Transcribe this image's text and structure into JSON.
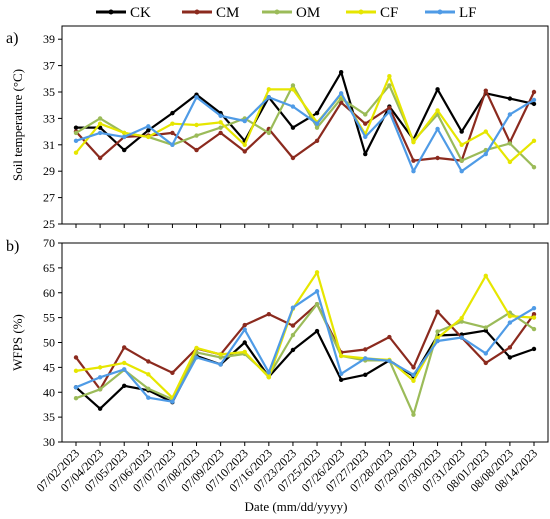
{
  "chart_data": [
    {
      "type": "line",
      "panel_label": "a)",
      "ylabel": "Soil temperature (°C)",
      "ylim": [
        25,
        40
      ],
      "yticks": [
        "25",
        "27",
        "29",
        "31",
        "33",
        "35",
        "37",
        "39"
      ],
      "categories": [
        "07/02/2023",
        "07/04/2023",
        "07/05/2023",
        "07/06/2023",
        "07/07/2023",
        "07/08/2023",
        "07/09/2023",
        "07/10/2023",
        "07/16/2023",
        "07/23/2023",
        "07/25/2023",
        "07/26/2023",
        "07/27/2023",
        "07/28/2023",
        "07/29/2023",
        "07/30/2023",
        "07/31/2023",
        "08/01/2023",
        "08/08/2023",
        "08/14/2023"
      ],
      "series": [
        {
          "name": "CK",
          "color": "#000000",
          "values": [
            32.3,
            32.3,
            30.6,
            32.1,
            33.4,
            34.8,
            33.4,
            31.3,
            34.6,
            32.3,
            33.4,
            36.5,
            30.3,
            33.9,
            31.4,
            35.2,
            32.0,
            34.9,
            34.5,
            34.1
          ]
        },
        {
          "name": "CM",
          "color": "#8b2a1e",
          "values": [
            32.0,
            30.0,
            31.6,
            31.7,
            31.9,
            30.6,
            31.9,
            30.5,
            32.2,
            30.0,
            31.3,
            34.2,
            32.6,
            33.8,
            29.8,
            30.0,
            29.8,
            35.1,
            31.2,
            35.0
          ]
        },
        {
          "name": "OM",
          "color": "#9bbb59",
          "values": [
            31.9,
            33.0,
            31.9,
            31.6,
            31.0,
            31.7,
            32.3,
            33.0,
            31.9,
            35.5,
            32.3,
            34.5,
            33.3,
            35.5,
            31.3,
            33.3,
            29.8,
            30.6,
            31.1,
            29.3
          ]
        },
        {
          "name": "CF",
          "color": "#e6e600",
          "values": [
            30.4,
            32.6,
            31.9,
            31.6,
            32.6,
            32.5,
            32.7,
            31.0,
            35.2,
            35.2,
            32.7,
            34.8,
            31.8,
            36.2,
            31.2,
            33.6,
            31.0,
            32.0,
            29.7,
            31.3
          ]
        },
        {
          "name": "LF",
          "color": "#4f9be6",
          "values": [
            31.3,
            31.9,
            31.6,
            32.4,
            31.0,
            34.6,
            33.2,
            32.8,
            34.6,
            33.9,
            32.6,
            34.9,
            31.6,
            33.5,
            29.0,
            32.2,
            29.0,
            30.3,
            33.3,
            34.4
          ]
        }
      ]
    },
    {
      "type": "line",
      "panel_label": "b)",
      "xlabel": "Date (mm/dd/yyyy)",
      "ylabel": "WFPS (%)",
      "ylim": [
        30,
        70
      ],
      "yticks": [
        "30",
        "35",
        "40",
        "45",
        "50",
        "55",
        "60",
        "65",
        "70"
      ],
      "categories": [
        "07/02/2023",
        "07/04/2023",
        "07/05/2023",
        "07/06/2023",
        "07/07/2023",
        "07/08/2023",
        "07/09/2023",
        "07/10/2023",
        "07/16/2023",
        "07/23/2023",
        "07/25/2023",
        "07/26/2023",
        "07/27/2023",
        "07/28/2023",
        "07/29/2023",
        "07/30/2023",
        "07/31/2023",
        "08/01/2023",
        "08/08/2023",
        "08/14/2023"
      ],
      "series": [
        {
          "name": "CK",
          "color": "#000000",
          "values": [
            41.0,
            36.7,
            41.3,
            40.4,
            38.0,
            47.3,
            45.6,
            50.0,
            43.1,
            48.5,
            52.3,
            42.5,
            43.5,
            46.4,
            43.2,
            51.4,
            51.6,
            52.4,
            47.0,
            48.7
          ]
        },
        {
          "name": "CM",
          "color": "#8b2a1e",
          "values": [
            47.0,
            40.6,
            49.0,
            46.2,
            43.9,
            48.8,
            47.6,
            53.5,
            55.7,
            53.4,
            57.7,
            48.0,
            48.6,
            51.1,
            45.0,
            56.2,
            51.0,
            45.9,
            49.0,
            55.7
          ]
        },
        {
          "name": "OM",
          "color": "#9bbb59",
          "values": [
            38.8,
            40.6,
            44.5,
            40.7,
            38.6,
            48.0,
            47.0,
            47.7,
            43.3,
            51.5,
            57.7,
            47.3,
            46.4,
            46.4,
            35.5,
            52.2,
            54.2,
            53.0,
            56.0,
            52.7
          ]
        },
        {
          "name": "CF",
          "color": "#e6e600",
          "values": [
            44.3,
            45.0,
            45.9,
            43.6,
            38.9,
            48.9,
            47.6,
            48.1,
            43.0,
            56.8,
            64.1,
            47.3,
            46.8,
            46.5,
            42.3,
            50.9,
            54.9,
            63.4,
            55.3,
            55.0
          ]
        },
        {
          "name": "LF",
          "color": "#4f9be6",
          "values": [
            41.0,
            43.0,
            44.6,
            38.9,
            38.1,
            47.0,
            45.6,
            52.6,
            44.0,
            57.0,
            60.3,
            43.7,
            46.8,
            46.3,
            43.5,
            50.3,
            51.0,
            47.8,
            54.0,
            56.9
          ]
        }
      ]
    }
  ],
  "legend": [
    {
      "name": "CK",
      "color": "#000000"
    },
    {
      "name": "CM",
      "color": "#8b2a1e"
    },
    {
      "name": "OM",
      "color": "#9bbb59"
    },
    {
      "name": "CF",
      "color": "#e6e600"
    },
    {
      "name": "LF",
      "color": "#4f9be6"
    }
  ]
}
